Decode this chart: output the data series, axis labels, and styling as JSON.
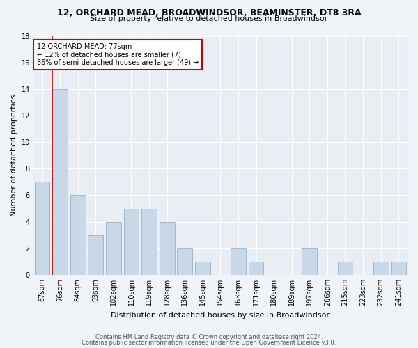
{
  "title": "12, ORCHARD MEAD, BROADWINDSOR, BEAMINSTER, DT8 3RA",
  "subtitle": "Size of property relative to detached houses in Broadwindsor",
  "xlabel": "Distribution of detached houses by size in Broadwindsor",
  "ylabel": "Number of detached properties",
  "categories": [
    "67sqm",
    "76sqm",
    "84sqm",
    "93sqm",
    "102sqm",
    "110sqm",
    "119sqm",
    "128sqm",
    "136sqm",
    "145sqm",
    "154sqm",
    "163sqm",
    "171sqm",
    "180sqm",
    "189sqm",
    "197sqm",
    "206sqm",
    "215sqm",
    "223sqm",
    "232sqm",
    "241sqm"
  ],
  "values": [
    7,
    14,
    6,
    3,
    4,
    5,
    5,
    4,
    2,
    1,
    0,
    2,
    1,
    0,
    0,
    2,
    0,
    1,
    0,
    1,
    1
  ],
  "bar_color": "#c8d8e8",
  "bar_edge_color": "#9ab0c0",
  "vline_color": "#cc0000",
  "vline_index": 1,
  "annotation_text": "12 ORCHARD MEAD: 77sqm\n← 12% of detached houses are smaller (7)\n86% of semi-detached houses are larger (49) →",
  "annotation_box_color": "#ffffff",
  "annotation_box_edge": "#cc0000",
  "ylim": [
    0,
    18
  ],
  "yticks": [
    0,
    2,
    4,
    6,
    8,
    10,
    12,
    14,
    16,
    18
  ],
  "footer1": "Contains HM Land Registry data © Crown copyright and database right 2024.",
  "footer2": "Contains public sector information licensed under the Open Government Licence v3.0.",
  "bg_color": "#f0f4f8",
  "plot_bg_color": "#e8eef4",
  "title_fontsize": 9,
  "subtitle_fontsize": 8,
  "axis_label_fontsize": 8,
  "tick_fontsize": 7,
  "annotation_fontsize": 7,
  "footer_fontsize": 6
}
